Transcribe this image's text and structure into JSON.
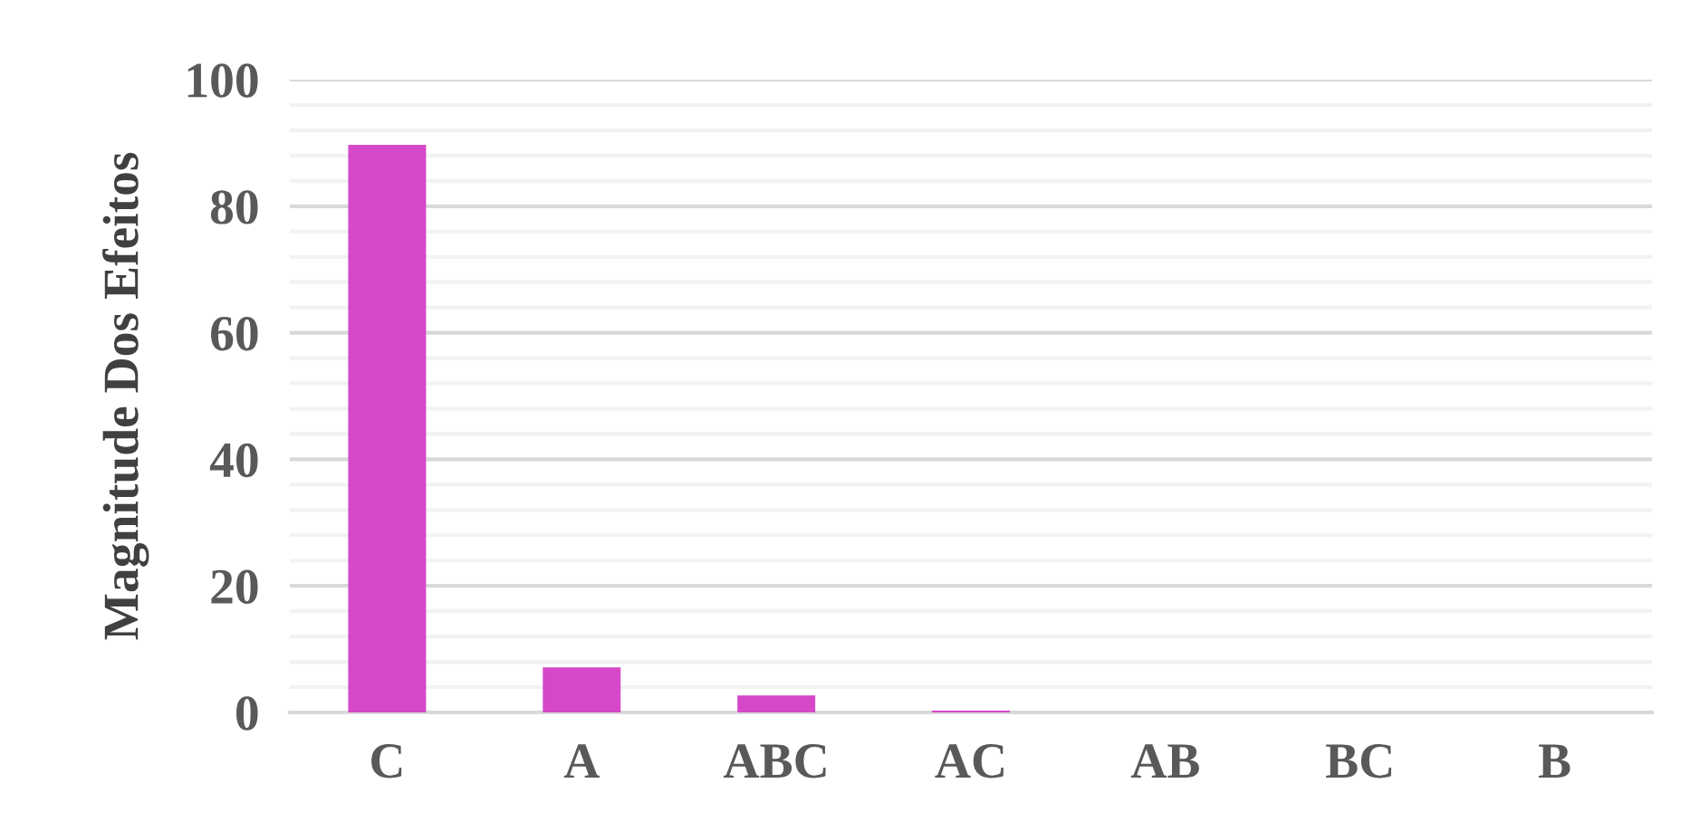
{
  "chart_data": {
    "type": "bar",
    "ylabel": "Magnitude Dos Efeitos",
    "categories": [
      "C",
      "A",
      "ABC",
      "AC",
      "AB",
      "BC",
      "B"
    ],
    "values": [
      89.7,
      7.1,
      2.7,
      0.3,
      0,
      0,
      0
    ],
    "color": "#d548c8",
    "ylim": [
      0,
      100
    ],
    "yticks": [
      0,
      {
        "value": 4,
        "label": null
      },
      {
        "value": 8,
        "label": null
      },
      {
        "value": 12,
        "label": null
      },
      {
        "value": 16,
        "label": null
      },
      20,
      {
        "value": 24,
        "label": null
      },
      {
        "value": 28,
        "label": null
      },
      {
        "value": 32,
        "label": null
      },
      {
        "value": 36,
        "label": null
      },
      40,
      {
        "value": 44,
        "label": null
      },
      {
        "value": 48,
        "label": null
      },
      {
        "value": 52,
        "label": null
      },
      {
        "value": 56,
        "label": null
      },
      60,
      {
        "value": 64,
        "label": null
      },
      {
        "value": 68,
        "label": null
      },
      {
        "value": 72,
        "label": null
      },
      {
        "value": 76,
        "label": null
      },
      80,
      {
        "value": 84,
        "label": null
      },
      {
        "value": 88,
        "label": null
      },
      {
        "value": 92,
        "label": null
      },
      {
        "value": 96,
        "label": null
      },
      100
    ],
    "grid": true
  }
}
